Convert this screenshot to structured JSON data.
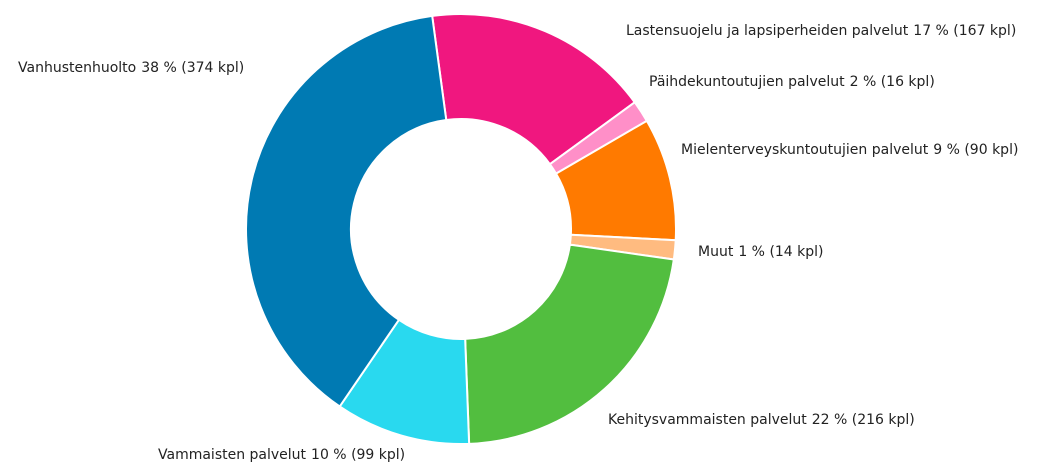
{
  "chart_data": {
    "type": "donut",
    "categories": [
      "Lastensuojelu ja lapsiperheiden palvelut",
      "Päihdekuntoutujien palvelut",
      "Mielenterveyskuntoutujien palvelut",
      "Muut",
      "Kehitysvammaisten palvelut",
      "Vammaisten palvelut",
      "Vanhustenhuolto"
    ],
    "values": [
      167,
      16,
      90,
      14,
      216,
      99,
      374
    ],
    "value_labels": [
      "17 % (167 kpl)",
      "2 % (16 kpl)",
      "9 % (90 kpl)",
      "1 % (14 kpl)",
      "22 % (216 kpl)",
      "10 % (99 kpl)",
      "38 % (374 kpl)"
    ],
    "colors": [
      "#f0177f",
      "#ff8fc8",
      "#ff7a00",
      "#ffbb80",
      "#52be3f",
      "#29d9ef",
      "#007ab3"
    ]
  }
}
